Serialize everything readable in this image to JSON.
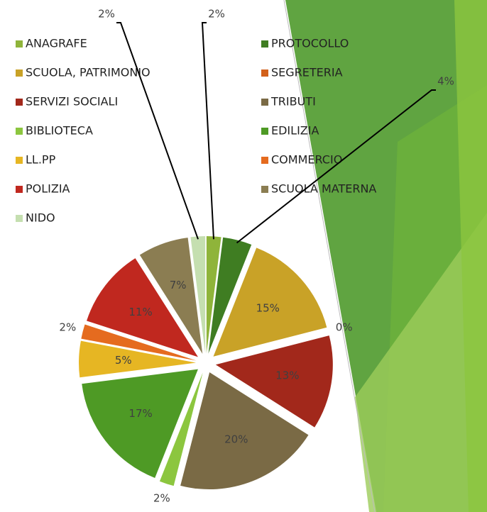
{
  "chart_data": {
    "type": "pie",
    "categories": [
      "ANAGRAFE",
      "PROTOCOLLO",
      "SCUOLA, PATRIMONIO",
      "SEGRETERIA",
      "SERVIZI SOCIALI",
      "TRIBUTI",
      "BIBLIOTECA",
      "EDILIZIA",
      "LL.PP",
      "COMMERCIO",
      "POLIZIA",
      "SCUOLA MATERNA",
      "NIDO"
    ],
    "values": [
      2,
      4,
      15,
      0,
      13,
      20,
      2,
      17,
      5,
      2,
      11,
      7,
      2
    ],
    "value_labels": [
      "2%",
      "4%",
      "15%",
      "0%",
      "13%",
      "20%",
      "2%",
      "17%",
      "5%",
      "2%",
      "11%",
      "7%",
      "2%"
    ],
    "colors": [
      "#8fb43a",
      "#3f7d22",
      "#c9a227",
      "#d2601a",
      "#a2281b",
      "#7a6a45",
      "#8cc63f",
      "#4e9a25",
      "#e6b623",
      "#e56b1f",
      "#c0281f",
      "#8b7d52",
      "#c5dfb0"
    ],
    "legend": "top"
  }
}
